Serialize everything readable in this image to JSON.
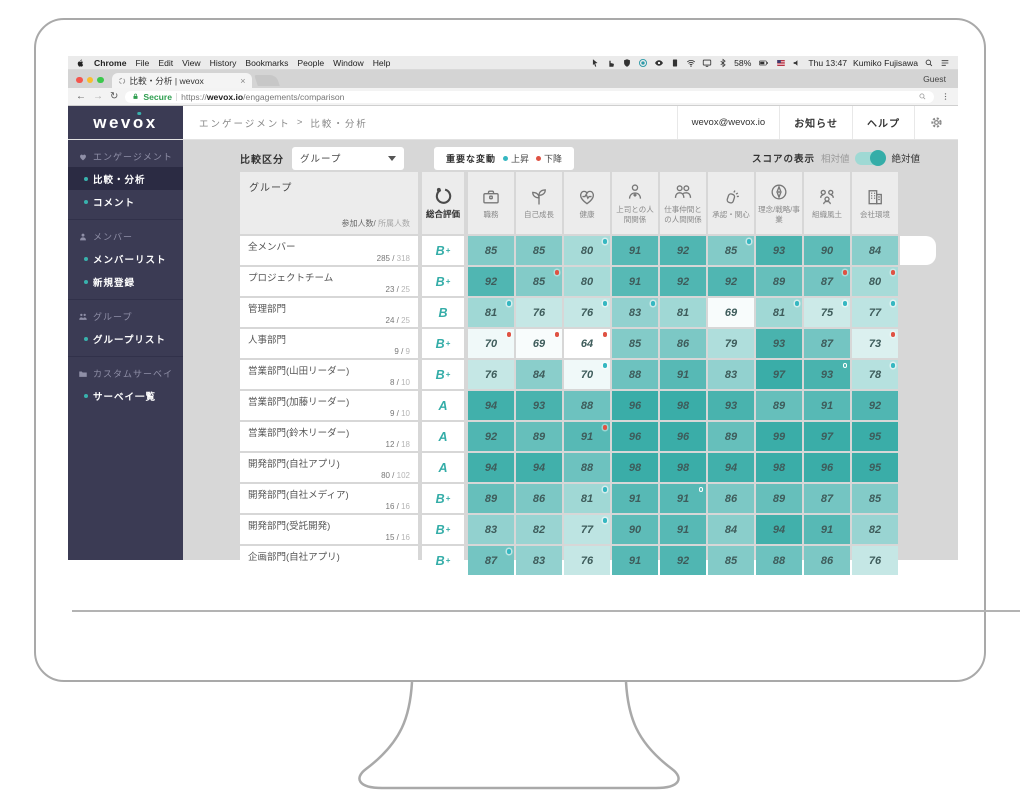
{
  "menubar": {
    "items": [
      "Chrome",
      "File",
      "Edit",
      "View",
      "History",
      "Bookmarks",
      "People",
      "Window",
      "Help"
    ],
    "status_icons": [
      "cursor-icon",
      "hand-icon",
      "shield-icon",
      "record-icon",
      "eye-icon",
      "card-icon",
      "wifi-icon",
      "display-icon",
      "bluetooth-icon"
    ],
    "battery": "58%",
    "time": "Thu 13:47",
    "user": "Kumiko Fujisawa"
  },
  "browser": {
    "tab_title": "比較・分析 | wevox",
    "tab_close": "×",
    "profile_label": "Guest",
    "back": "←",
    "forward": "→",
    "reload": "↻",
    "secure_label": "Secure",
    "url_prefix": "https://",
    "url_domain": "wevox.io",
    "url_path": "/engagements/comparison"
  },
  "header": {
    "logo": "wevox",
    "breadcrumb": [
      "エンゲージメント",
      "比較・分析"
    ],
    "breadcrumb_sep": ">",
    "account": "wevox@wevox.io",
    "links": [
      "お知らせ",
      "ヘルプ"
    ]
  },
  "sidebar": {
    "sections": [
      {
        "icon": "heart-icon",
        "label": "エンゲージメント",
        "items": [
          {
            "label": "比較・分析",
            "active": true
          },
          {
            "label": "コメント",
            "active": false
          }
        ]
      },
      {
        "icon": "member-icon",
        "label": "メンバー",
        "items": [
          {
            "label": "メンバーリスト",
            "active": false
          },
          {
            "label": "新規登録",
            "active": false
          }
        ]
      },
      {
        "icon": "group-icon",
        "label": "グループ",
        "items": [
          {
            "label": "グループリスト",
            "active": false
          }
        ]
      },
      {
        "icon": "folder-icon",
        "label": "カスタムサーベイ",
        "items": [
          {
            "label": "サーベイ一覧",
            "active": false
          }
        ]
      }
    ]
  },
  "controls": {
    "compare_label": "比較区分",
    "compare_value": "グループ",
    "change_label": "重要な変動",
    "up_label": "上昇",
    "down_label": "下降",
    "score_label": "スコアの表示",
    "relative_label": "相対値",
    "absolute_label": "絶対値",
    "absolute_selected": true
  },
  "table": {
    "group_header": "グループ",
    "count_header_primary": "参加人数/",
    "count_header_secondary": " 所属人数",
    "columns": [
      {
        "label": "総合評価",
        "icon": "overall-icon"
      },
      {
        "label": "職務",
        "icon": "briefcase-icon"
      },
      {
        "label": "自己成長",
        "icon": "growth-icon"
      },
      {
        "label": "健康",
        "icon": "health-icon"
      },
      {
        "label": "上司との人間関係",
        "icon": "boss-icon"
      },
      {
        "label": "仕事仲間との人間関係",
        "icon": "coworker-icon"
      },
      {
        "label": "承認・関心",
        "icon": "recognition-icon"
      },
      {
        "label": "理念/戦略/事業",
        "icon": "strategy-icon"
      },
      {
        "label": "組織風土",
        "icon": "culture-icon"
      },
      {
        "label": "会社環境",
        "icon": "building-icon"
      }
    ],
    "rows": [
      {
        "name": "全メンバー",
        "joined": "285",
        "total": "318",
        "grade": "B+",
        "handle": true,
        "scores": [
          {
            "v": 85
          },
          {
            "v": 85
          },
          {
            "v": 80,
            "m": "up"
          },
          {
            "v": 91
          },
          {
            "v": 92
          },
          {
            "v": 85,
            "m": "up"
          },
          {
            "v": 93
          },
          {
            "v": 90
          },
          {
            "v": 84
          }
        ]
      },
      {
        "name": "プロジェクトチーム",
        "joined": "23",
        "total": "25",
        "grade": "B+",
        "scores": [
          {
            "v": 92
          },
          {
            "v": 85,
            "m": "down"
          },
          {
            "v": 80
          },
          {
            "v": 91
          },
          {
            "v": 92
          },
          {
            "v": 92
          },
          {
            "v": 89
          },
          {
            "v": 87,
            "m": "down"
          },
          {
            "v": 80,
            "m": "down"
          }
        ]
      },
      {
        "name": "管理部門",
        "joined": "24",
        "total": "25",
        "grade": "B",
        "scores": [
          {
            "v": 81,
            "m": "up"
          },
          {
            "v": 76
          },
          {
            "v": 76,
            "m": "up"
          },
          {
            "v": 83,
            "m": "up"
          },
          {
            "v": 81
          },
          {
            "v": 69
          },
          {
            "v": 81,
            "m": "up"
          },
          {
            "v": 75,
            "m": "up"
          },
          {
            "v": 77,
            "m": "up"
          }
        ]
      },
      {
        "name": "人事部門",
        "joined": "9",
        "total": "9",
        "grade": "B+",
        "scores": [
          {
            "v": 70,
            "m": "down"
          },
          {
            "v": 69,
            "m": "down"
          },
          {
            "v": 64,
            "m": "down"
          },
          {
            "v": 85
          },
          {
            "v": 86
          },
          {
            "v": 79
          },
          {
            "v": 93
          },
          {
            "v": 87
          },
          {
            "v": 73,
            "m": "down"
          }
        ]
      },
      {
        "name": "営業部門(山田リーダー)",
        "joined": "8",
        "total": "10",
        "grade": "B+",
        "scores": [
          {
            "v": 76
          },
          {
            "v": 84
          },
          {
            "v": 70,
            "m": "up"
          },
          {
            "v": 88
          },
          {
            "v": 91
          },
          {
            "v": 83
          },
          {
            "v": 97
          },
          {
            "v": 93,
            "m": "ring"
          },
          {
            "v": 78,
            "m": "up"
          }
        ]
      },
      {
        "name": "営業部門(加藤リーダー)",
        "joined": "9",
        "total": "10",
        "grade": "A",
        "scores": [
          {
            "v": 94
          },
          {
            "v": 93
          },
          {
            "v": 88
          },
          {
            "v": 96
          },
          {
            "v": 98
          },
          {
            "v": 93
          },
          {
            "v": 89
          },
          {
            "v": 91
          },
          {
            "v": 92
          }
        ]
      },
      {
        "name": "営業部門(鈴木リーダー)",
        "joined": "12",
        "total": "18",
        "grade": "A",
        "scores": [
          {
            "v": 92
          },
          {
            "v": 89
          },
          {
            "v": 91,
            "m": "down"
          },
          {
            "v": 96
          },
          {
            "v": 96
          },
          {
            "v": 89
          },
          {
            "v": 99
          },
          {
            "v": 97
          },
          {
            "v": 95
          }
        ]
      },
      {
        "name": "開発部門(自社アプリ)",
        "joined": "80",
        "total": "102",
        "grade": "A",
        "scores": [
          {
            "v": 94
          },
          {
            "v": 94
          },
          {
            "v": 88
          },
          {
            "v": 98
          },
          {
            "v": 98
          },
          {
            "v": 94
          },
          {
            "v": 98
          },
          {
            "v": 96
          },
          {
            "v": 95
          }
        ]
      },
      {
        "name": "開発部門(自社メディア)",
        "joined": "16",
        "total": "16",
        "grade": "B+",
        "scores": [
          {
            "v": 89
          },
          {
            "v": 86
          },
          {
            "v": 81,
            "m": "up"
          },
          {
            "v": 91
          },
          {
            "v": 91,
            "m": "ring"
          },
          {
            "v": 86
          },
          {
            "v": 89
          },
          {
            "v": 87
          },
          {
            "v": 85
          }
        ]
      },
      {
        "name": "開発部門(受託開発)",
        "joined": "15",
        "total": "16",
        "grade": "B+",
        "scores": [
          {
            "v": 83
          },
          {
            "v": 82
          },
          {
            "v": 77,
            "m": "up"
          },
          {
            "v": 90
          },
          {
            "v": 91
          },
          {
            "v": 84
          },
          {
            "v": 94
          },
          {
            "v": 91
          },
          {
            "v": 82
          }
        ]
      },
      {
        "name": "企画部門(自社アプリ)",
        "joined": "",
        "total": "",
        "grade": "B+",
        "scores": [
          {
            "v": 87,
            "m": "up"
          },
          {
            "v": 83
          },
          {
            "v": 76
          },
          {
            "v": 91
          },
          {
            "v": 92
          },
          {
            "v": 85
          },
          {
            "v": 88
          },
          {
            "v": 86
          },
          {
            "v": 76
          }
        ]
      }
    ]
  },
  "colors": {
    "teal": "#35ada8",
    "up_dot": "#35b7c1",
    "down_dot": "#df5243",
    "sidebar_bg": "#3b3b54",
    "sidebar_active_bg": "#2b2b43",
    "content_bg": "#d7d7d7"
  }
}
